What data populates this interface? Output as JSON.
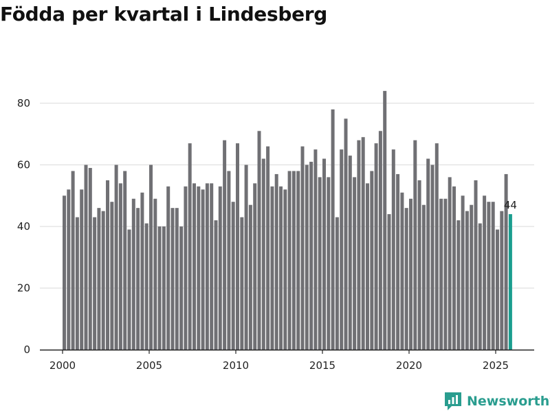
{
  "title": "Födda per kvartal i Lindesberg",
  "brand": {
    "name": "Newsworthy"
  },
  "colors": {
    "bar": "#707074",
    "highlight": "#1a9e8f",
    "grid": "#e0e0e0",
    "axis": "#222222",
    "brand": "#2a9d8f"
  },
  "chart_data": {
    "type": "bar",
    "title": "Födda per kvartal i Lindesberg",
    "xlabel": "",
    "ylabel": "",
    "ylim": [
      0,
      80
    ],
    "yticks": [
      0,
      20,
      40,
      60,
      80
    ],
    "xticks": [
      "2000",
      "2005",
      "2010",
      "2015",
      "2020",
      "2025"
    ],
    "start_year": 2000,
    "values": [
      50,
      52,
      58,
      43,
      52,
      60,
      59,
      43,
      46,
      45,
      55,
      48,
      60,
      54,
      58,
      39,
      49,
      46,
      51,
      41,
      60,
      49,
      40,
      40,
      53,
      46,
      46,
      40,
      53,
      67,
      54,
      53,
      52,
      54,
      54,
      42,
      53,
      68,
      58,
      48,
      67,
      43,
      60,
      47,
      54,
      71,
      62,
      66,
      53,
      57,
      53,
      52,
      58,
      58,
      58,
      66,
      60,
      61,
      65,
      56,
      62,
      56,
      78,
      43,
      65,
      75,
      63,
      56,
      68,
      69,
      54,
      58,
      67,
      71,
      84,
      44,
      65,
      57,
      51,
      46,
      49,
      68,
      55,
      47,
      62,
      60,
      67,
      49,
      49,
      56,
      53,
      42,
      50,
      45,
      47,
      55,
      41,
      50,
      48,
      48,
      39,
      45,
      57,
      44
    ],
    "highlight_last": true,
    "last_value_label": "44"
  }
}
